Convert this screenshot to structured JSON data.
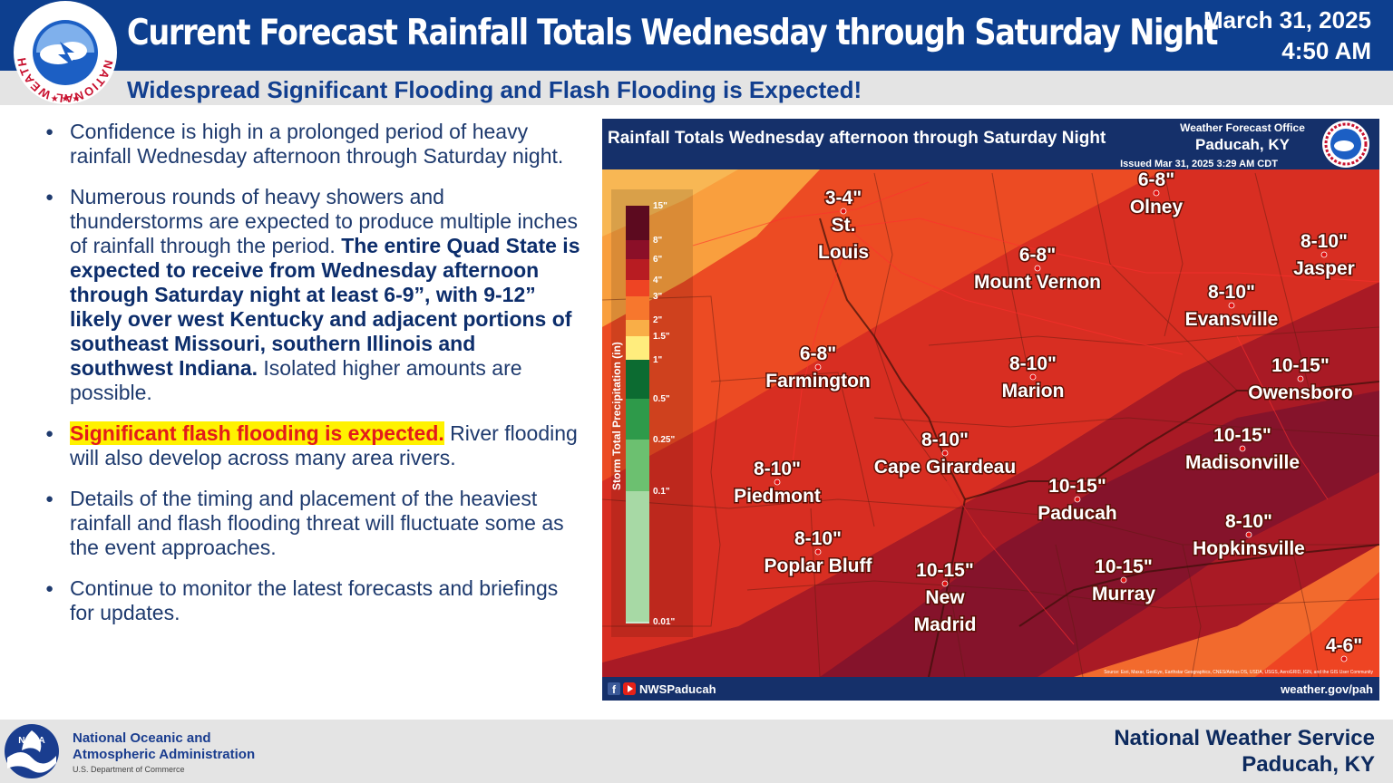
{
  "header": {
    "title": "Current Forecast Rainfall Totals Wednesday through Saturday Night",
    "date": "March 31, 2025",
    "time": "4:50 AM",
    "subtitle": "Widespread Significant Flooding and Flash Flooding is Expected!",
    "nws_logo_text": "NATIONAL WEATHER SERVICE"
  },
  "bullets": [
    {
      "text": "Confidence is high in a prolonged period of heavy rainfall Wednesday afternoon through Saturday night."
    },
    {
      "text": "Numerous rounds of heavy showers and thunderstorms are expected to produce multiple inches of rainfall through the period. ",
      "bold": "The entire Quad State is expected to receive from Wednesday afternoon through Saturday night at least 6-9”, with 9-12” likely over west Kentucky and adjacent portions of southeast Missouri, southern Illinois and southwest Indiana.",
      "tail": "  Isolated higher amounts are possible."
    },
    {
      "highlight": "Significant flash flooding is expected.",
      "text": " River flooding will also develop across many area rivers."
    },
    {
      "text": "Details of the timing and placement of the heaviest rainfall and flash flooding threat will fluctuate some as the event approaches."
    },
    {
      "text": "Continue to monitor the latest forecasts and briefings for updates."
    }
  ],
  "map": {
    "title": "Rainfall Totals Wednesday afternoon through Saturday Night",
    "office_line1": "Weather Forecast Office",
    "office_line2": "Paducah, KY",
    "issued": "Issued Mar 31, 2025 3:29 AM CDT",
    "legend_title": "Storm Total Precipitation (in)",
    "legend_ticks": [
      "15\"",
      "8\"",
      "6\"",
      "4\"",
      "3\"",
      "2\"",
      "1.5\"",
      "1\"",
      "0.5\"",
      "0.25\"",
      "0.1\"",
      "0.01\""
    ],
    "legend_colors": [
      "#5c0a1f",
      "#8b0f28",
      "#b81c22",
      "#ee4423",
      "#f7772d",
      "#f9ae47",
      "#ffed7d",
      "#0c6b31",
      "#2e9a4a",
      "#6cc070",
      "#a7d9a5",
      "#c9ead0"
    ],
    "labels": [
      {
        "amount": "3-4\"",
        "city": "St.\nLouis"
      },
      {
        "amount": "6-8\"",
        "city": "Olney"
      },
      {
        "amount": "6-8\"",
        "city": "Mount Vernon"
      },
      {
        "amount": "8-10\"",
        "city": "Jasper"
      },
      {
        "amount": "8-10\"",
        "city": "Evansville"
      },
      {
        "amount": "6-8\"",
        "city": "Farmington"
      },
      {
        "amount": "8-10\"",
        "city": "Marion"
      },
      {
        "amount": "10-15\"",
        "city": "Owensboro"
      },
      {
        "amount": "8-10\"",
        "city": "Cape Girardeau"
      },
      {
        "amount": "10-15\"",
        "city": "Madisonville"
      },
      {
        "amount": "8-10\"",
        "city": "Piedmont"
      },
      {
        "amount": "10-15\"",
        "city": "Paducah"
      },
      {
        "amount": "8-10\"",
        "city": "Poplar Bluff"
      },
      {
        "amount": "8-10\"",
        "city": "Hopkinsville"
      },
      {
        "amount": "10-15\"",
        "city": "New\nMadrid"
      },
      {
        "amount": "10-15\"",
        "city": "Murray"
      },
      {
        "amount": "4-6\"",
        "city": ""
      }
    ],
    "source_credit": "Source: Esri, Maxar, GeoEye, Earthstar Geographics, CNES/Airbus DS, USDA, USGS, AeroGRID, IGN, and the GIS User Community",
    "social": "NWSPaducah",
    "website": "weather.gov/pah"
  },
  "footer": {
    "noaa_line1": "National Oceanic and",
    "noaa_line2": "Atmospheric Administration",
    "noaa_dept": "U.S. Department of Commerce",
    "noaa_logo_text": "NOAA",
    "right_line1": "National Weather Service",
    "right_line2": "Paducah, KY"
  },
  "colors": {
    "header_bg": "#0d3f8f",
    "subtitle": "#123f8f",
    "highlight_bg": "#fff200",
    "highlight_text": "#e31b1b"
  }
}
